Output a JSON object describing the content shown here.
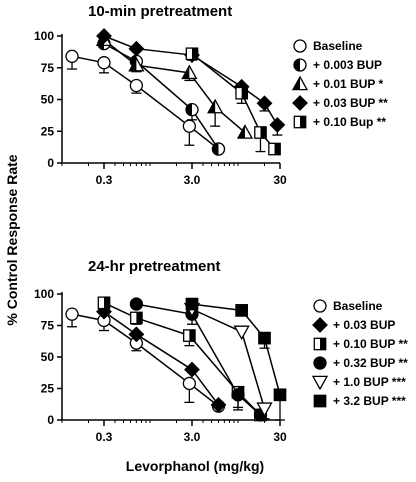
{
  "figure": {
    "ylabel": "% Control  Response Rate",
    "xlabel": "Levorphanol (mg/kg)"
  },
  "chart_data": [
    {
      "type": "line",
      "title": "10-min pretreatment",
      "xlabel": "",
      "ylabel": "% Control  Response Rate",
      "xscale": "log",
      "xlim": [
        0.1,
        30
      ],
      "ylim": [
        0,
        100
      ],
      "xticks": [
        0.3,
        3.0,
        30
      ],
      "xtick_labels": [
        "0.3",
        "3.0",
        "30"
      ],
      "yticks": [
        0,
        25,
        50,
        75,
        100
      ],
      "grid": false,
      "legend_position": "right",
      "series": [
        {
          "name": "Baseline",
          "marker": "circle-open",
          "x": [
            0.13,
            0.3,
            0.7,
            2.8,
            6
          ],
          "y": [
            84,
            79,
            61,
            29,
            11
          ],
          "err": [
            10,
            8,
            6,
            15,
            0
          ]
        },
        {
          "name": "+ 0.003 BUP",
          "marker": "circle-half",
          "x": [
            0.3,
            0.7,
            3,
            6
          ],
          "y": [
            94,
            80,
            42,
            11
          ],
          "err": [
            0,
            8,
            8,
            0
          ]
        },
        {
          "name": "+ 0.01 BUP",
          "sig": "*",
          "marker": "triangle-half",
          "x": [
            0.3,
            0.7,
            2.8,
            5.5,
            12
          ],
          "y": [
            97,
            77,
            71,
            44,
            24
          ],
          "err": [
            0,
            5,
            6,
            15,
            0
          ]
        },
        {
          "name": "+ 0.03 BUP",
          "sig": "**",
          "marker": "diamond-filled",
          "x": [
            0.3,
            0.7,
            3,
            11,
            20,
            28
          ],
          "y": [
            100,
            90,
            85,
            60,
            47,
            30
          ],
          "err": [
            0,
            0,
            0,
            0,
            6,
            8
          ]
        },
        {
          "name": "+ 0.10 Bup",
          "sig": "**",
          "marker": "square-half",
          "x": [
            3,
            11,
            18,
            26
          ],
          "y": [
            86,
            55,
            24,
            11
          ],
          "err": [
            5,
            8,
            15,
            0
          ]
        }
      ]
    },
    {
      "type": "line",
      "title": "24-hr pretreatment",
      "xlabel": "Levorphanol (mg/kg)",
      "ylabel": "% Control  Response Rate",
      "xscale": "log",
      "xlim": [
        0.1,
        30
      ],
      "ylim": [
        0,
        100
      ],
      "xticks": [
        0.3,
        3.0,
        30
      ],
      "xtick_labels": [
        "0.3",
        "3.0",
        "30"
      ],
      "yticks": [
        0,
        25,
        50,
        75,
        100
      ],
      "grid": false,
      "legend_position": "right",
      "series": [
        {
          "name": "Baseline",
          "marker": "circle-open",
          "x": [
            0.13,
            0.3,
            0.7,
            2.8,
            6
          ],
          "y": [
            84,
            79,
            61,
            29,
            11
          ],
          "err": [
            10,
            8,
            6,
            15,
            0
          ]
        },
        {
          "name": "+ 0.03 BUP",
          "marker": "diamond-filled",
          "x": [
            0.3,
            0.7,
            3,
            6
          ],
          "y": [
            86,
            68,
            40,
            12
          ],
          "err": [
            0,
            0,
            0,
            0
          ]
        },
        {
          "name": "+ 0.10 BUP",
          "sig": "**",
          "marker": "square-half",
          "x": [
            0.3,
            0.7,
            2.8,
            10,
            18
          ],
          "y": [
            93,
            81,
            67,
            22,
            4
          ],
          "err": [
            5,
            5,
            8,
            12,
            0
          ]
        },
        {
          "name": "+ 0.32 BUP",
          "sig": "**",
          "marker": "circle-filled",
          "x": [
            0.7,
            3,
            10,
            18
          ],
          "y": [
            92,
            84,
            20,
            4
          ],
          "err": [
            0,
            8,
            12,
            0
          ]
        },
        {
          "name": "+ 1.0 BUP",
          "sig": "***",
          "marker": "triangle-down-open",
          "x": [
            3,
            11,
            20
          ],
          "y": [
            88,
            70,
            9
          ],
          "err": [
            0,
            0,
            8
          ]
        },
        {
          "name": "+ 3.2 BUP",
          "sig": "***",
          "marker": "square-filled",
          "x": [
            3,
            11,
            20,
            30
          ],
          "y": [
            92,
            87,
            65,
            20
          ],
          "err": [
            0,
            0,
            8,
            20
          ]
        }
      ]
    }
  ]
}
